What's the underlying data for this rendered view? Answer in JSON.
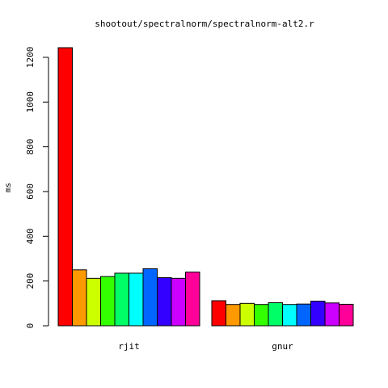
{
  "chart_data": {
    "type": "bar",
    "title": "shootout/spectralnorm/spectralnorm-alt2.r",
    "xlabel": "",
    "ylabel": "ms",
    "categories": [
      "rjit",
      "gnur"
    ],
    "ylim": [
      0,
      1250
    ],
    "yticks": [
      0,
      200,
      400,
      600,
      800,
      1000,
      1200
    ],
    "legend": "none",
    "grid": false,
    "colors": [
      "#FF0000",
      "#FF9900",
      "#CCFF00",
      "#33FF00",
      "#00FF66",
      "#00FFFF",
      "#0066FF",
      "#3300FF",
      "#CC00FF",
      "#FF0099"
    ],
    "series": [
      {
        "values": [
          1243,
          112
        ]
      },
      {
        "values": [
          250,
          95
        ]
      },
      {
        "values": [
          212,
          100
        ]
      },
      {
        "values": [
          220,
          95
        ]
      },
      {
        "values": [
          235,
          103
        ]
      },
      {
        "values": [
          235,
          95
        ]
      },
      {
        "values": [
          255,
          97
        ]
      },
      {
        "values": [
          215,
          110
        ]
      },
      {
        "values": [
          212,
          102
        ]
      },
      {
        "values": [
          240,
          96
        ]
      }
    ]
  }
}
